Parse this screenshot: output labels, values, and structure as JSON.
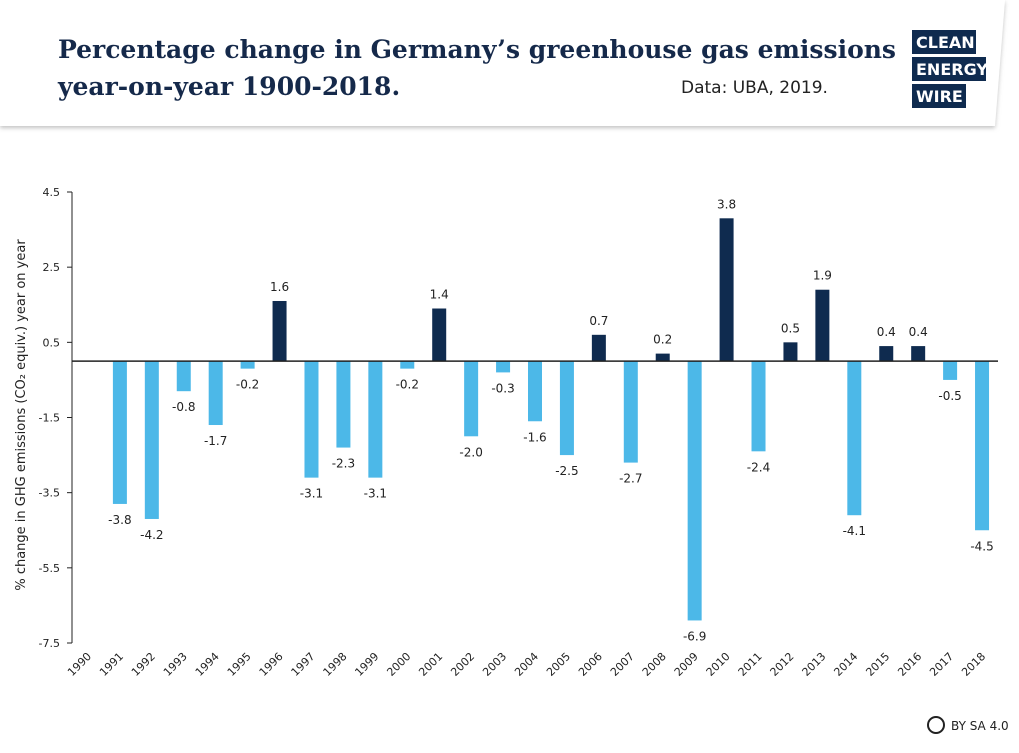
{
  "chart_data": {
    "type": "bar",
    "title": "Percentage change in Germany’s greenhouse gas emissions year-on-year 1900-2018.",
    "source": "Data: UBA, 2019.",
    "logo": [
      "CLEAN",
      "ENERGY",
      "WIRE"
    ],
    "license": "BY SA 4.0",
    "y_label": "% change in GHG emissions (CO₂ equiv.) year on year",
    "categories": [
      "1990",
      "1991",
      "1992",
      "1993",
      "1994",
      "1995",
      "1996",
      "1997",
      "1998",
      "1999",
      "2000",
      "2001",
      "2002",
      "2003",
      "2004",
      "2005",
      "2006",
      "2007",
      "2008",
      "2009",
      "2010",
      "2011",
      "2012",
      "2013",
      "2014",
      "2015",
      "2016",
      "2017",
      "2018"
    ],
    "values": [
      null,
      -3.8,
      -4.2,
      -0.8,
      -1.7,
      -0.2,
      1.6,
      -3.1,
      -2.3,
      -3.1,
      -0.2,
      1.4,
      -2.0,
      -0.3,
      -1.6,
      -2.5,
      0.7,
      -2.7,
      0.2,
      -6.9,
      3.8,
      -2.4,
      0.5,
      1.9,
      -4.1,
      0.4,
      0.4,
      -0.5,
      -4.5
    ],
    "value_labels": [
      null,
      "-3.8",
      "-4.2",
      "-0.8",
      "-1.7",
      "-0.2",
      "1.6",
      "-3.1",
      "-2.3",
      "-3.1",
      "-0.2",
      "1.4",
      "-2.0",
      "-0.3",
      "-1.6",
      "-2.5",
      "0.7",
      "-2.7",
      "0.2",
      "-6.9",
      "3.8",
      "-2.4",
      "0.5",
      "1.9",
      "-4.1",
      "0.4",
      "0.4",
      "-0.5",
      "-4.5"
    ],
    "color_positive": "#0f2b4f",
    "color_negative": "#4cb8e8",
    "ylim": [
      -7.5,
      4.5
    ],
    "yticks": [
      4.5,
      2.5,
      0.5,
      -1.5,
      -3.5,
      -5.5,
      -7.5
    ]
  }
}
